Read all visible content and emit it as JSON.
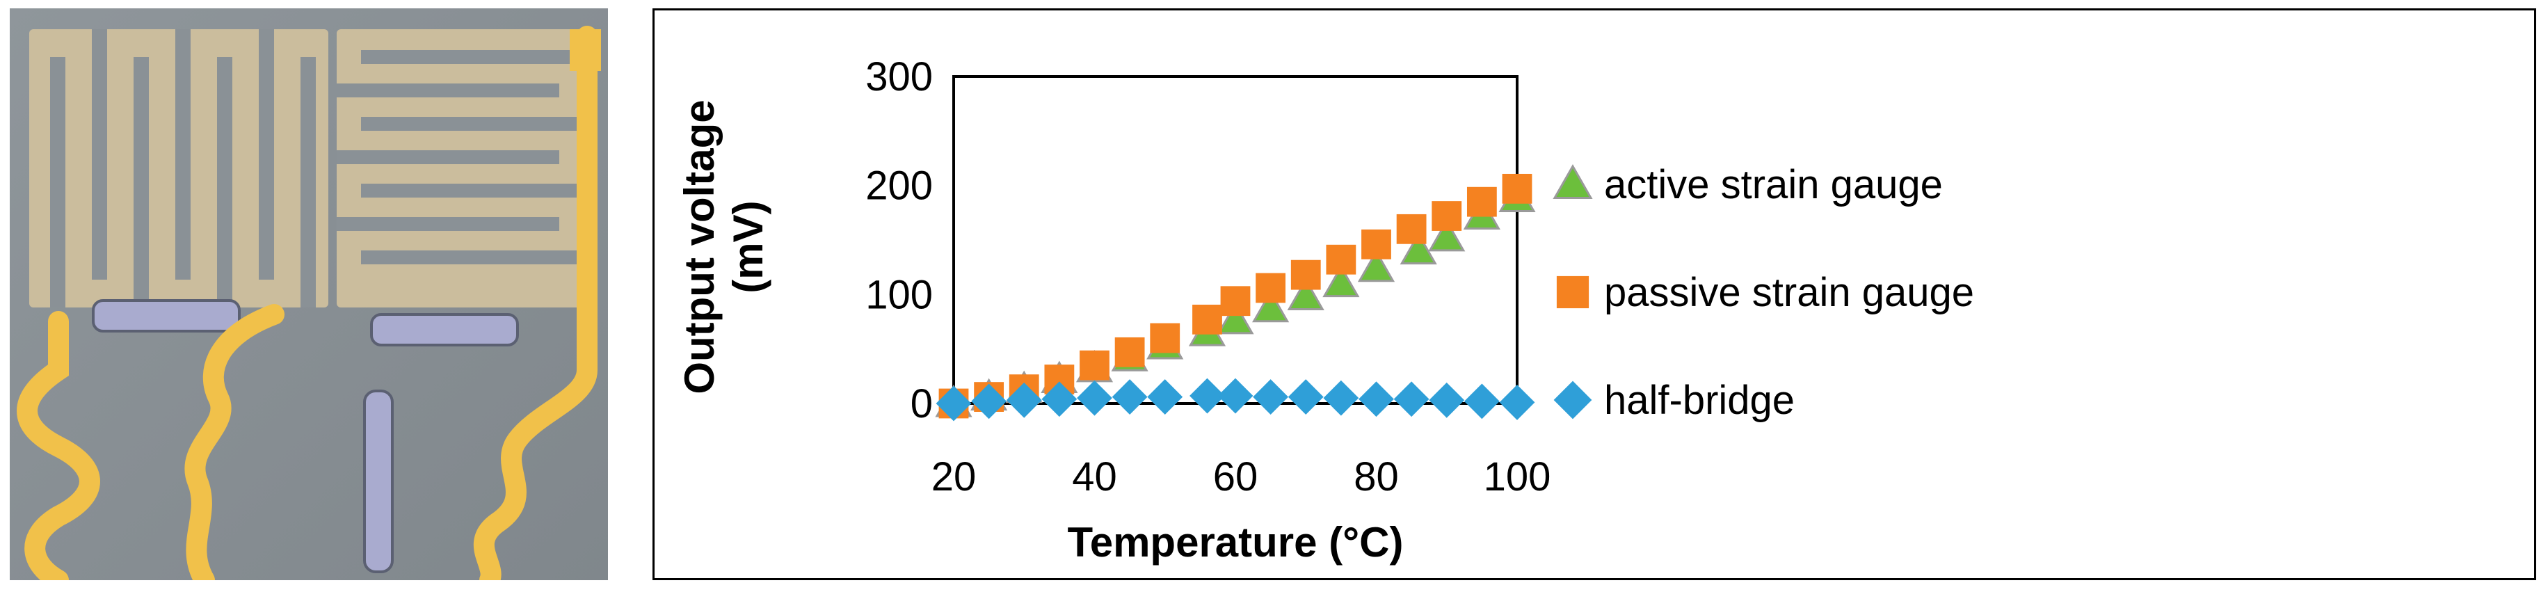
{
  "chart_data": {
    "type": "scatter",
    "title": "",
    "xlabel": "Temperature (°C)",
    "ylabel_line1": "Output voltage",
    "ylabel_line2": "(mV)",
    "xlim": [
      20,
      100
    ],
    "ylim": [
      0,
      300
    ],
    "xticks": [
      20,
      40,
      60,
      80,
      100
    ],
    "yticks": [
      0,
      100,
      200,
      300
    ],
    "grid": false,
    "legend_position": "right",
    "series": [
      {
        "name": "active strain gauge",
        "marker": "triangle",
        "color": "#6cbf3c",
        "edge": "#9a9a9a",
        "x": [
          20,
          25,
          30,
          35,
          40,
          45,
          50,
          56,
          60,
          65,
          70,
          75,
          80,
          86,
          90,
          95,
          100
        ],
        "y": [
          0,
          6,
          13,
          22,
          32,
          42,
          53,
          65,
          76,
          87,
          98,
          110,
          124,
          140,
          152,
          172,
          188
        ]
      },
      {
        "name": "passive strain gauge",
        "marker": "square",
        "color": "#f58220",
        "edge": "#f58220",
        "x": [
          20,
          25,
          30,
          35,
          40,
          45,
          50,
          56,
          60,
          65,
          70,
          75,
          80,
          85,
          90,
          95,
          100
        ],
        "y": [
          0,
          6,
          13,
          22,
          35,
          47,
          60,
          77,
          94,
          106,
          118,
          132,
          146,
          160,
          172,
          185,
          197
        ]
      },
      {
        "name": "half-bridge",
        "marker": "diamond",
        "color": "#2f9fd8",
        "edge": "#2f9fd8",
        "x": [
          20,
          25,
          30,
          35,
          40,
          45,
          50,
          56,
          60,
          65,
          70,
          75,
          80,
          85,
          90,
          95,
          100
        ],
        "y": [
          0,
          2,
          3,
          4,
          5,
          6,
          6,
          7,
          7,
          6,
          6,
          5,
          4,
          4,
          3,
          2,
          1
        ]
      }
    ]
  }
}
